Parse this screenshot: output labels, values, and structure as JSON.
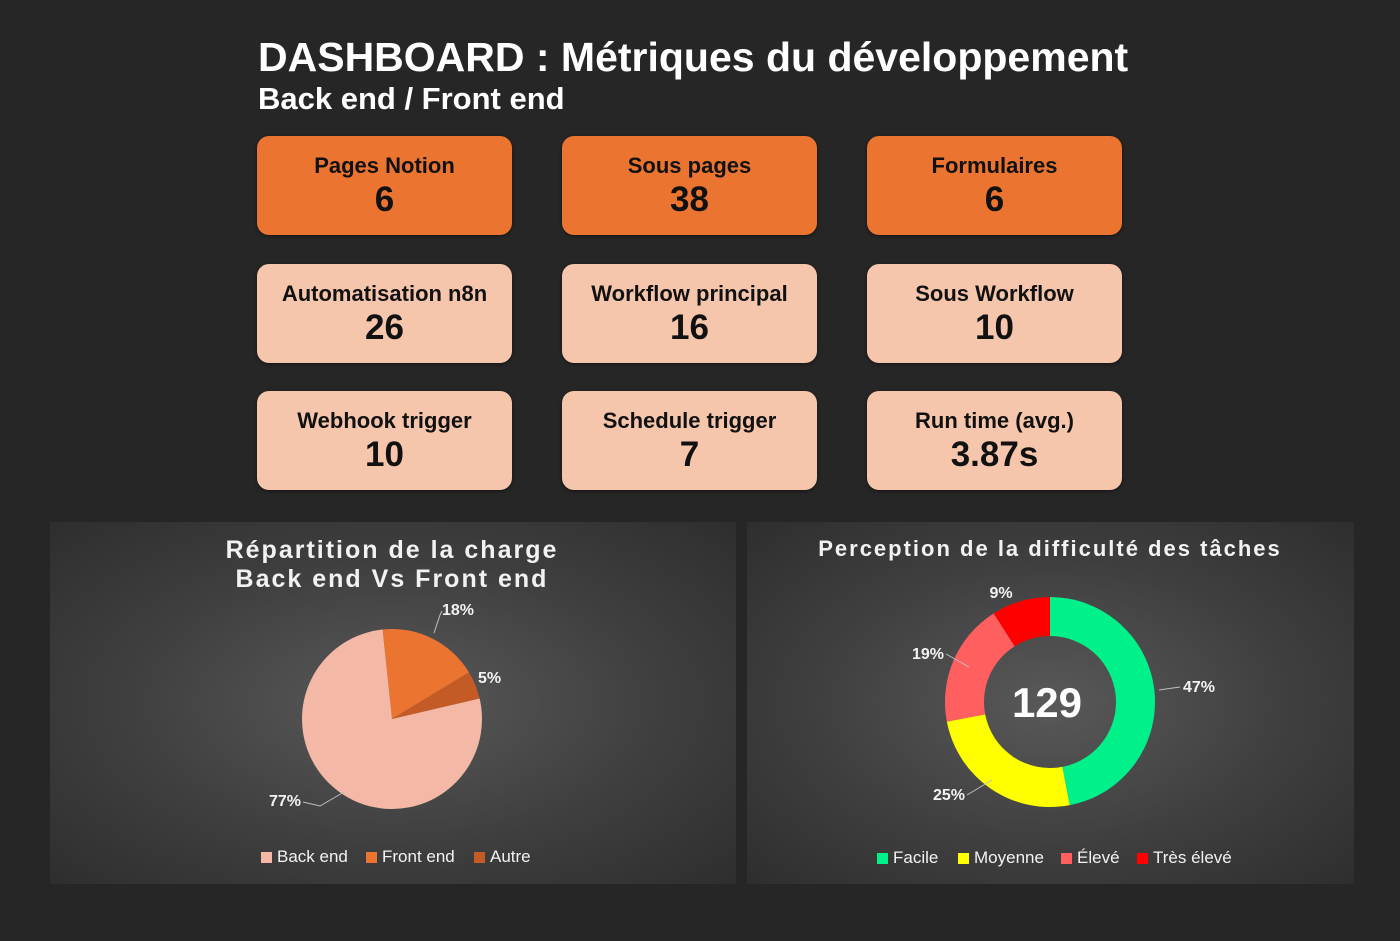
{
  "header": {
    "title": "DASHBOARD : Métriques du développement",
    "subtitle": "Back end / Front end"
  },
  "kpis": [
    {
      "label": "Pages Notion",
      "value": "6"
    },
    {
      "label": "Sous pages",
      "value": "38"
    },
    {
      "label": "Formulaires",
      "value": "6"
    },
    {
      "label": "Automatisation n8n",
      "value": "26"
    },
    {
      "label": "Workflow principal",
      "value": "16"
    },
    {
      "label": "Sous Workflow",
      "value": "10"
    },
    {
      "label": "Webhook trigger",
      "value": "10"
    },
    {
      "label": "Schedule trigger",
      "value": "7"
    },
    {
      "label": "Run time (avg.)",
      "value": "3.87s"
    }
  ],
  "colors": {
    "background": "#262626",
    "card_primary": "#EB7431",
    "card_secondary": "#F6C6AC"
  },
  "chart_data": [
    {
      "type": "pie",
      "title": "Répartition de la charge",
      "subtitle": "Back end Vs Front end",
      "categories": [
        "Back end",
        "Front end",
        "Autre"
      ],
      "values": [
        77,
        18,
        5
      ],
      "labels": [
        "77%",
        "18%",
        "5%"
      ],
      "colors": [
        "#F4B9A6",
        "#EB7431",
        "#C45A25"
      ],
      "legend": "bottom"
    },
    {
      "type": "donut",
      "title": "Perception de la difficulté des tâches",
      "center_value": "129",
      "categories": [
        "Facile",
        "Moyenne",
        "Élevé",
        "Très élevé"
      ],
      "values": [
        47,
        25,
        19,
        9
      ],
      "labels": [
        "47%",
        "25%",
        "19%",
        "9%"
      ],
      "colors": [
        "#00F08A",
        "#FFFF00",
        "#FF5F5F",
        "#FF0000"
      ],
      "legend": "bottom"
    }
  ]
}
